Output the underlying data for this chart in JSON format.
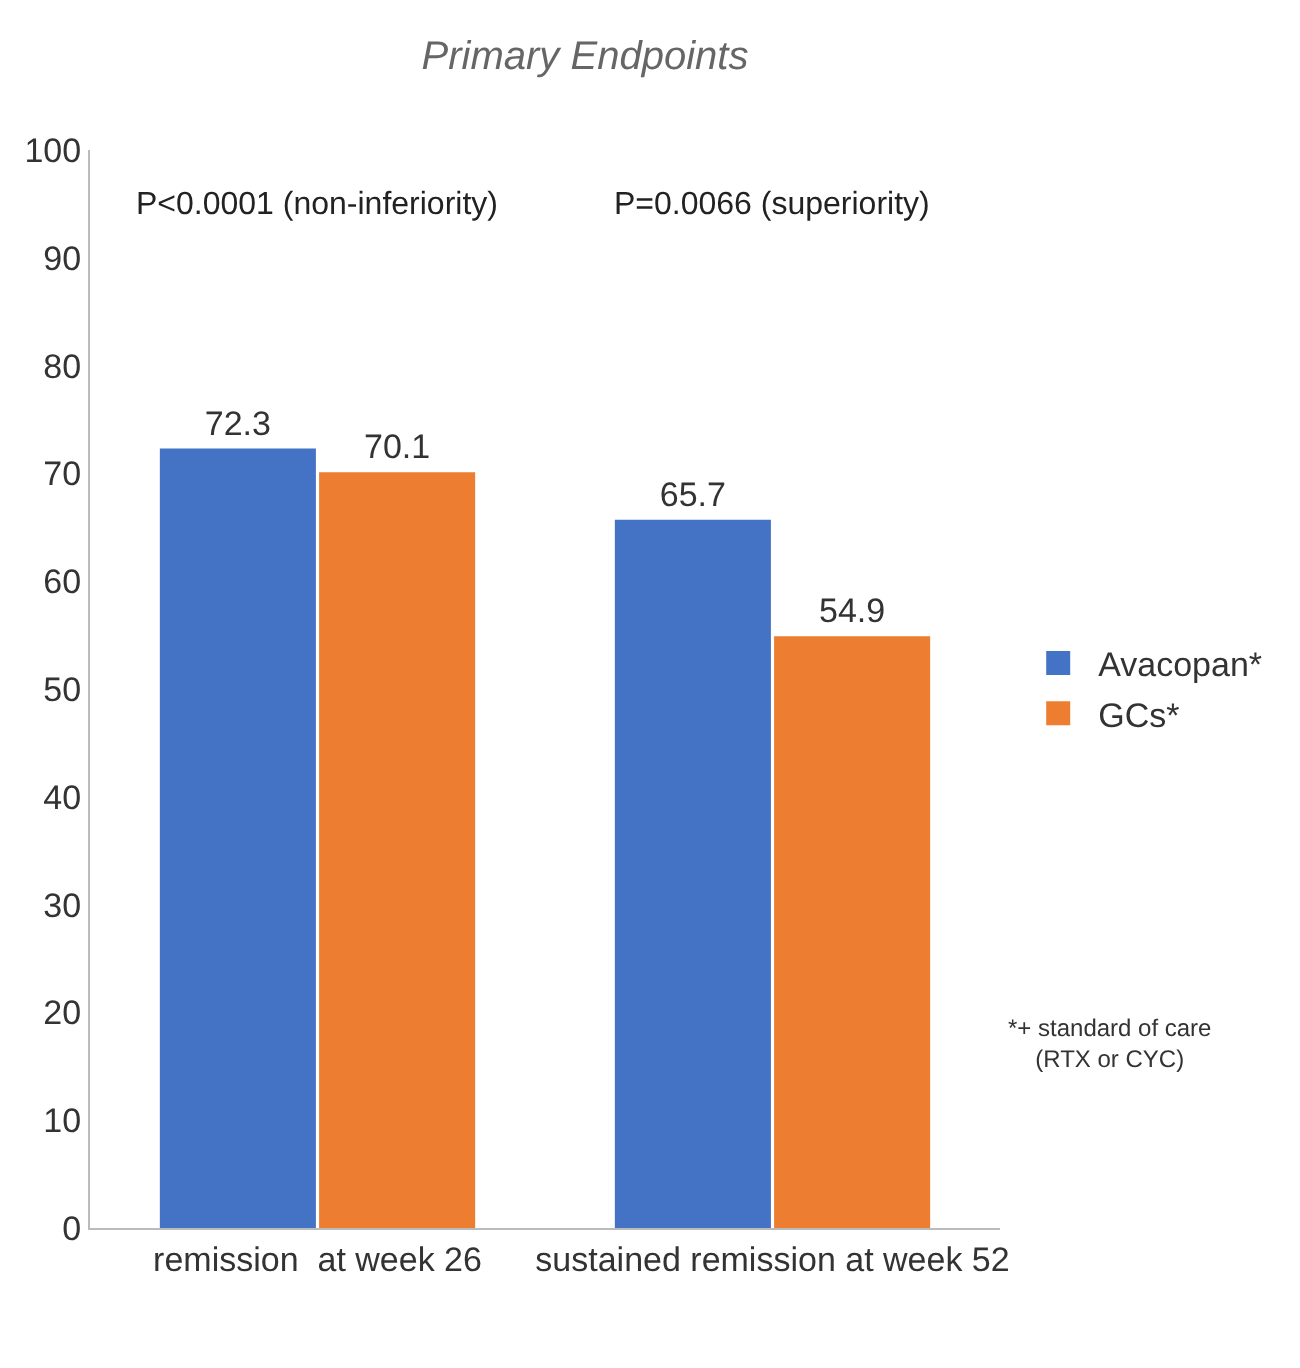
{
  "chart_data": {
    "type": "bar",
    "title": "Primary Endpoints",
    "categories": [
      "remission  at week 26",
      "sustained remission at week 52"
    ],
    "series": [
      {
        "name": "Avacopan*",
        "color": "#4472c4",
        "values": [
          72.3,
          65.7
        ]
      },
      {
        "name": "GCs*",
        "color": "#ed7d31",
        "values": [
          70.1,
          54.9
        ]
      }
    ],
    "ylim": [
      0,
      100
    ],
    "yticks": [
      0,
      10,
      20,
      30,
      40,
      50,
      60,
      70,
      80,
      90,
      100
    ],
    "grid": false,
    "legend": "right",
    "data_labels": true,
    "annotations": [
      "P<0.0001 (non-inferiority)",
      "P=0.0066 (superiority)",
      "*+ standard of care\n(RTX or CYC)"
    ]
  }
}
